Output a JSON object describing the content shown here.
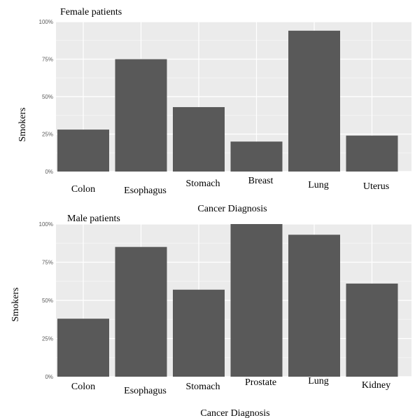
{
  "colors": {
    "panel_bg": "#ebebeb",
    "grid_major": "#ffffff",
    "grid_minor": "#f4f4f4",
    "bar_fill": "#595959",
    "tick_text": "#5a5a5a",
    "text": "#000000"
  },
  "chart_data": [
    {
      "type": "bar",
      "title": "Female patients",
      "xlabel": "Cancer Diagnosis",
      "ylabel": "Smokers",
      "categories": [
        "Colon",
        "Esophagus",
        "Stomach",
        "Breast",
        "Lung",
        "Uterus"
      ],
      "values": [
        0.28,
        0.75,
        0.43,
        0.2,
        0.94,
        0.24
      ],
      "ylim": [
        0,
        1
      ],
      "yticks": [
        0,
        0.25,
        0.5,
        0.75,
        1
      ],
      "ytick_labels": [
        "0%",
        "25%",
        "50%",
        "75%",
        "100%"
      ],
      "grid": true
    },
    {
      "type": "bar",
      "title": "Male patients",
      "xlabel": "Cancer Diagnosis",
      "ylabel": "Smokers",
      "categories": [
        "Colon",
        "Esophagus",
        "Stomach",
        "Prostate",
        "Lung",
        "Kidney"
      ],
      "values": [
        0.38,
        0.85,
        0.57,
        1.0,
        0.93,
        0.61
      ],
      "ylim": [
        0,
        1
      ],
      "yticks": [
        0,
        0.25,
        0.5,
        0.75,
        1
      ],
      "ytick_labels": [
        "0%",
        "25%",
        "50%",
        "75%",
        "100%"
      ],
      "grid": true
    }
  ]
}
